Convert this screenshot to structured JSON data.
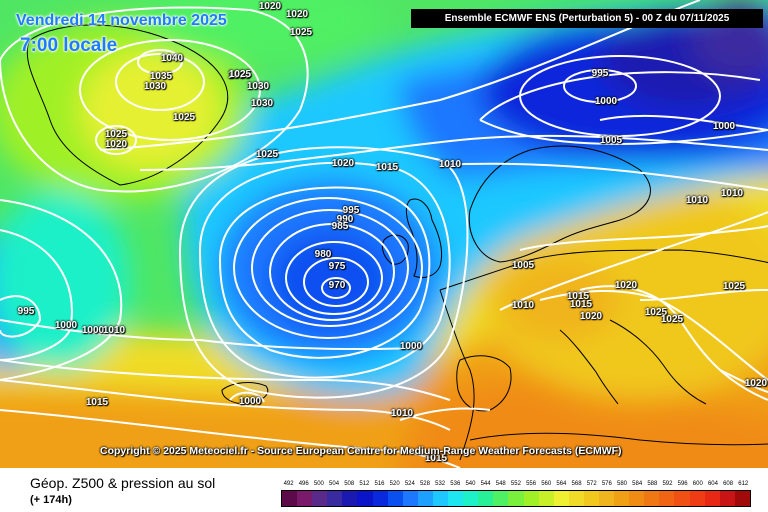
{
  "header": {
    "date": "Vendredi 14 novembre 2025",
    "time": "7:00 locale",
    "model": "Ensemble ECMWF ENS  (Perturbation 5)  - 00 Z du 07/11/2025"
  },
  "footer": {
    "copyright": "Copyright © 2025 Meteociel.fr - Source European Centre for Medium-Range Weather Forecasts (ECMWF)",
    "parameter": "Géop. Z500 & pression au sol",
    "lead_time": "(+ 174h)"
  },
  "legend": {
    "values": [
      "492",
      "496",
      "500",
      "504",
      "508",
      "512",
      "516",
      "520",
      "524",
      "528",
      "532",
      "536",
      "540",
      "544",
      "548",
      "552",
      "556",
      "560",
      "564",
      "568",
      "572",
      "576",
      "580",
      "584",
      "588",
      "592",
      "596",
      "600",
      "604",
      "608",
      "612"
    ],
    "colors": [
      "#5c0a4a",
      "#7a1a6a",
      "#5a2a8a",
      "#3a2aa0",
      "#1a1ab0",
      "#0a14c8",
      "#0a28dc",
      "#0a50f0",
      "#1e78ff",
      "#1ea0ff",
      "#1ec8ff",
      "#1ee6f0",
      "#1ef0c8",
      "#28f096",
      "#50f064",
      "#78f03c",
      "#a0f028",
      "#c8f028",
      "#f0f032",
      "#f0dc28",
      "#f0c81e",
      "#f0b41e",
      "#f0a014",
      "#f08c14",
      "#f07814",
      "#f06414",
      "#f05014",
      "#f03c14",
      "#e62814",
      "#c81414",
      "#a00a0a"
    ]
  },
  "isobars": [
    {
      "id": "l1",
      "text": "1020"
    },
    {
      "id": "l2",
      "text": "1020"
    },
    {
      "id": "l3",
      "text": "1025"
    },
    {
      "id": "l4",
      "text": "1040"
    },
    {
      "id": "l5",
      "text": "1035"
    },
    {
      "id": "l6",
      "text": "1030"
    },
    {
      "id": "l7",
      "text": "1025"
    },
    {
      "id": "l8",
      "text": "1030"
    },
    {
      "id": "l9",
      "text": "1030"
    },
    {
      "id": "l10",
      "text": "1030"
    },
    {
      "id": "l11",
      "text": "1025"
    },
    {
      "id": "l12",
      "text": "1025"
    },
    {
      "id": "l13",
      "text": "1020"
    },
    {
      "id": "l14",
      "text": "1025"
    },
    {
      "id": "l15",
      "text": "1020"
    },
    {
      "id": "l16",
      "text": "1015"
    },
    {
      "id": "l17",
      "text": "1010"
    },
    {
      "id": "l18",
      "text": "995"
    },
    {
      "id": "l19",
      "text": "1000"
    },
    {
      "id": "l20",
      "text": "1005"
    },
    {
      "id": "l21",
      "text": "1000"
    },
    {
      "id": "l22",
      "text": "1010"
    },
    {
      "id": "l23",
      "text": "1010"
    },
    {
      "id": "l24",
      "text": "995"
    },
    {
      "id": "l25",
      "text": "990"
    },
    {
      "id": "l26",
      "text": "985"
    },
    {
      "id": "l27",
      "text": "980"
    },
    {
      "id": "l28",
      "text": "975"
    },
    {
      "id": "l29",
      "text": "970"
    },
    {
      "id": "l30",
      "text": "1005"
    },
    {
      "id": "l31",
      "text": "1010"
    },
    {
      "id": "l32",
      "text": "1015"
    },
    {
      "id": "l33",
      "text": "1015"
    },
    {
      "id": "l34",
      "text": "1020"
    },
    {
      "id": "l35",
      "text": "1020"
    },
    {
      "id": "l36",
      "text": "1025"
    },
    {
      "id": "l37",
      "text": "1025"
    },
    {
      "id": "l38",
      "text": "1025"
    },
    {
      "id": "l39",
      "text": "995"
    },
    {
      "id": "l40",
      "text": "1000"
    },
    {
      "id": "l41",
      "text": "1000"
    },
    {
      "id": "l42",
      "text": "1010"
    },
    {
      "id": "l43",
      "text": "1000"
    },
    {
      "id": "l44",
      "text": "1000"
    },
    {
      "id": "l45",
      "text": "1015"
    },
    {
      "id": "l46",
      "text": "1010"
    },
    {
      "id": "l47",
      "text": "1015"
    },
    {
      "id": "l48",
      "text": "1020"
    }
  ]
}
